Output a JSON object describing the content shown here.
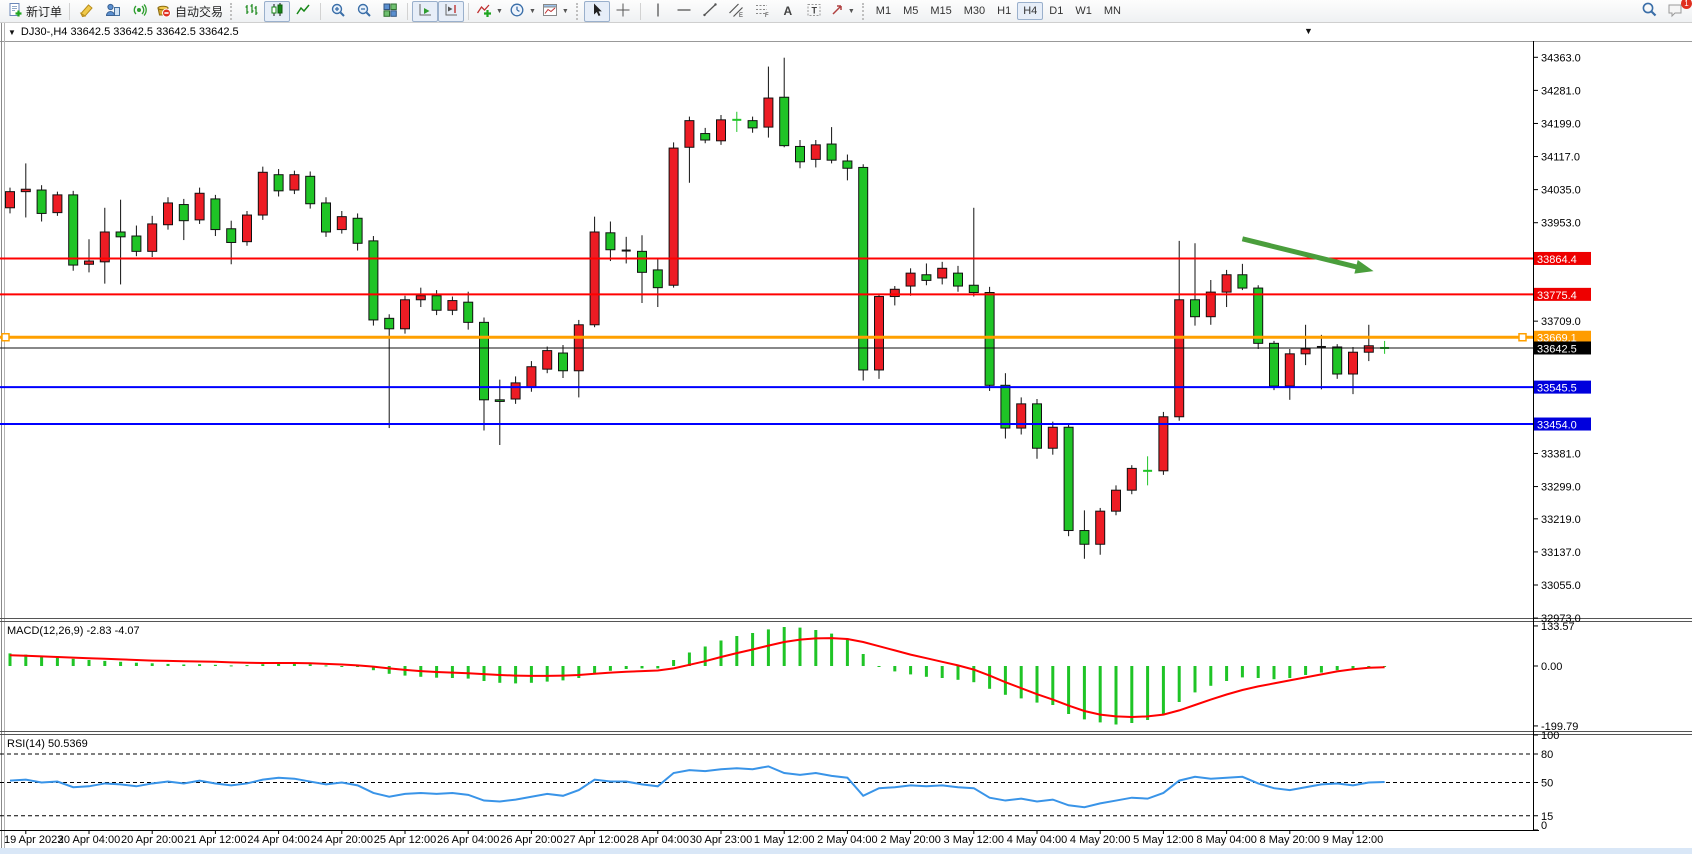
{
  "toolbar": {
    "new_order_label": "新订单",
    "autotrading_label": "自动交易",
    "timeframes": [
      "M1",
      "M5",
      "M15",
      "M30",
      "H1",
      "H4",
      "D1",
      "W1",
      "MN"
    ],
    "selected_timeframe": "H4",
    "notification_badge": "1"
  },
  "chart_title": {
    "text": "DJ30-,H4  33642.5 33642.5 33642.5 33642.5"
  },
  "chart_data": {
    "type": "candlestick",
    "symbol": "DJ30-",
    "timeframe": "H4",
    "color_convention": "red = bullish, green = bearish (Chinese convention)",
    "current_price": 33642.5,
    "price_axis_ticks": [
      34363.0,
      34281.0,
      34199.0,
      34117.0,
      34035.0,
      33953.0,
      33709.0,
      33381.0,
      33299.0,
      33219.0,
      33137.0,
      33055.0,
      32973.0
    ],
    "price_line_labels": [
      {
        "text": "33864.4",
        "price": 33864.4,
        "bg": "#ee0000"
      },
      {
        "text": "33775.4",
        "price": 33775.4,
        "bg": "#ee0000"
      },
      {
        "text": "33669.1",
        "price": 33669.1,
        "bg": "#ff9c00"
      },
      {
        "text": "33642.5",
        "price": 33642.5,
        "bg": "#000000"
      },
      {
        "text": "33545.5",
        "price": 33545.5,
        "bg": "#0000dd"
      },
      {
        "text": "33454.0",
        "price": 33454.0,
        "bg": "#0000dd"
      }
    ],
    "horizontal_lines": [
      {
        "price": 33864.4,
        "color": "#ff0000",
        "w": 2,
        "handles": false
      },
      {
        "price": 33775.4,
        "color": "#ff0000",
        "w": 2,
        "handles": false
      },
      {
        "price": 33669.1,
        "color": "#ffa000",
        "w": 3,
        "handles": true
      },
      {
        "price": 33642.5,
        "color": "#111111",
        "w": 1,
        "handles": false
      },
      {
        "price": 33545.5,
        "color": "#0000ff",
        "w": 2,
        "handles": false
      },
      {
        "price": 33454.0,
        "color": "#0000ff",
        "w": 2,
        "handles": false
      }
    ],
    "time_labels": [
      "19 Apr 2023",
      "20 Apr 04:00",
      "20 Apr 20:00",
      "21 Apr 12:00",
      "24 Apr 04:00",
      "24 Apr 20:00",
      "25 Apr 12:00",
      "26 Apr 04:00",
      "26 Apr 20:00",
      "27 Apr 12:00",
      "28 Apr 04:00",
      "30 Apr 23:00",
      "1 May 12:00",
      "2 May 04:00",
      "2 May 20:00",
      "3 May 12:00",
      "4 May 04:00",
      "4 May 20:00",
      "5 May 12:00",
      "8 May 04:00",
      "8 May 20:00",
      "9 May 12:00"
    ],
    "candle_colors": {
      "up": "#ed1c24",
      "down": "#1fc426",
      "wick": "#111111"
    },
    "candles": [
      [
        33990,
        34040,
        33976,
        34030
      ],
      [
        34030,
        34100,
        33966,
        34036
      ],
      [
        34034,
        34046,
        33956,
        33976
      ],
      [
        33978,
        34030,
        33970,
        34022
      ],
      [
        34022,
        34032,
        33834,
        33848
      ],
      [
        33850,
        33912,
        33830,
        33858
      ],
      [
        33856,
        33990,
        33802,
        33930
      ],
      [
        33930,
        34010,
        33800,
        33918
      ],
      [
        33920,
        33946,
        33870,
        33882
      ],
      [
        33882,
        33970,
        33868,
        33950
      ],
      [
        33948,
        34016,
        33936,
        34002
      ],
      [
        33998,
        34012,
        33910,
        33958
      ],
      [
        33960,
        34040,
        33950,
        34026
      ],
      [
        34012,
        34022,
        33920,
        33936
      ],
      [
        33938,
        33958,
        33850,
        33904
      ],
      [
        33906,
        33982,
        33896,
        33972
      ],
      [
        33972,
        34092,
        33960,
        34078
      ],
      [
        34072,
        34086,
        34018,
        34032
      ],
      [
        34034,
        34082,
        34024,
        34072
      ],
      [
        34068,
        34080,
        33988,
        34000
      ],
      [
        34002,
        34016,
        33918,
        33930
      ],
      [
        33936,
        33982,
        33926,
        33968
      ],
      [
        33964,
        33976,
        33884,
        33902
      ],
      [
        33908,
        33920,
        33698,
        33712
      ],
      [
        33716,
        33726,
        33444,
        33690
      ],
      [
        33690,
        33772,
        33678,
        33762
      ],
      [
        33762,
        33792,
        33744,
        33772
      ],
      [
        33772,
        33786,
        33724,
        33736
      ],
      [
        33736,
        33770,
        33724,
        33760
      ],
      [
        33756,
        33782,
        33688,
        33706
      ],
      [
        33706,
        33718,
        33438,
        33514
      ],
      [
        33514,
        33564,
        33402,
        33510
      ],
      [
        33516,
        33572,
        33504,
        33556
      ],
      [
        33546,
        33610,
        33534,
        33596
      ],
      [
        33590,
        33646,
        33580,
        33636
      ],
      [
        33630,
        33650,
        33568,
        33586
      ],
      [
        33586,
        33712,
        33520,
        33700
      ],
      [
        33700,
        33968,
        33694,
        33930
      ],
      [
        33928,
        33956,
        33858,
        33886
      ],
      [
        33884,
        33918,
        33852,
        33884
      ],
      [
        33882,
        33922,
        33754,
        33830
      ],
      [
        33836,
        33862,
        33744,
        33792
      ],
      [
        33798,
        34152,
        33792,
        34138
      ],
      [
        34140,
        34216,
        34052,
        34206
      ],
      [
        34174,
        34188,
        34150,
        34158
      ],
      [
        34156,
        34220,
        34146,
        34208
      ],
      [
        34208,
        34228,
        34178,
        34208
      ],
      [
        34206,
        34216,
        34176,
        34188
      ],
      [
        34190,
        34340,
        34164,
        34262
      ],
      [
        34264,
        34362,
        34140,
        34144
      ],
      [
        34142,
        34158,
        34088,
        34104
      ],
      [
        34110,
        34158,
        34090,
        34146
      ],
      [
        34148,
        34190,
        34100,
        34108
      ],
      [
        34106,
        34122,
        34058,
        34088
      ],
      [
        34090,
        34098,
        33562,
        33588
      ],
      [
        33588,
        33776,
        33566,
        33770
      ],
      [
        33770,
        33796,
        33748,
        33788
      ],
      [
        33796,
        33840,
        33772,
        33828
      ],
      [
        33824,
        33852,
        33798,
        33810
      ],
      [
        33816,
        33856,
        33800,
        33840
      ],
      [
        33828,
        33846,
        33782,
        33796
      ],
      [
        33798,
        33990,
        33770,
        33780
      ],
      [
        33780,
        33794,
        33536,
        33550
      ],
      [
        33550,
        33580,
        33418,
        33444
      ],
      [
        33444,
        33520,
        33428,
        33504
      ],
      [
        33504,
        33516,
        33368,
        33394
      ],
      [
        33394,
        33460,
        33378,
        33446
      ],
      [
        33446,
        33456,
        33176,
        33190
      ],
      [
        33190,
        33240,
        33120,
        33156
      ],
      [
        33156,
        33246,
        33130,
        33238
      ],
      [
        33238,
        33302,
        33228,
        33290
      ],
      [
        33290,
        33352,
        33280,
        33344
      ],
      [
        33338,
        33374,
        33302,
        33338
      ],
      [
        33338,
        33484,
        33328,
        33472
      ],
      [
        33472,
        33908,
        33462,
        33762
      ],
      [
        33762,
        33902,
        33698,
        33720
      ],
      [
        33720,
        33811,
        33700,
        33781
      ],
      [
        33781,
        33836,
        33744,
        33824
      ],
      [
        33824,
        33851,
        33786,
        33791
      ],
      [
        33791,
        33798,
        33640,
        33654
      ],
      [
        33654,
        33660,
        33538,
        33548
      ],
      [
        33548,
        33640,
        33514,
        33628
      ],
      [
        33628,
        33700,
        33600,
        33640
      ],
      [
        33645,
        33675,
        33540,
        33645
      ],
      [
        33645,
        33652,
        33566,
        33578
      ],
      [
        33578,
        33645,
        33528,
        33632
      ],
      [
        33632,
        33700,
        33610,
        33648
      ],
      [
        33642.5,
        33660,
        33628,
        33642.5
      ]
    ],
    "special_dojis": {
      "39": "#111111",
      "46": "#1fc426",
      "72": "#1fc426",
      "83": "#111111",
      "87": "#1fc426"
    },
    "arrow_annotation": {
      "from_bar": 78,
      "from_price": 33913,
      "to_bar": 86.3,
      "to_price": 33833,
      "color": "#4a9e3c"
    },
    "macd": {
      "label": "MACD(12,26,9)",
      "value_text": "-2.83 -4.07",
      "scale_max": 133.57,
      "scale_zero": "0.00",
      "scale_min": -199.79,
      "histogram_color": "#1fc426",
      "signal_color": "#ff0000",
      "histogram": [
        42,
        38,
        34,
        30,
        24,
        20,
        17,
        14,
        11,
        9,
        7,
        5,
        6,
        4,
        2,
        3,
        6,
        7,
        8,
        6,
        2,
        0,
        -3,
        -14,
        -26,
        -32,
        -36,
        -39,
        -40,
        -42,
        -50,
        -56,
        -58,
        -56,
        -52,
        -48,
        -40,
        -26,
        -16,
        -10,
        -8,
        -8,
        20,
        45,
        65,
        85,
        100,
        110,
        122,
        130,
        128,
        120,
        108,
        92,
        40,
        0,
        -18,
        -28,
        -36,
        -40,
        -46,
        -54,
        -76,
        -96,
        -108,
        -122,
        -130,
        -160,
        -178,
        -188,
        -195,
        -190,
        -180,
        -162,
        -120,
        -88,
        -66,
        -50,
        -38,
        -40,
        -44,
        -40,
        -30,
        -22,
        -14,
        -10,
        -6,
        -2.83
      ],
      "signal": [
        36,
        34,
        32,
        30,
        28,
        26,
        24,
        22,
        20,
        18,
        17,
        16,
        15,
        14,
        12,
        11,
        10,
        10,
        10,
        9,
        7,
        5,
        2,
        -2,
        -8,
        -13,
        -17,
        -20,
        -22,
        -24,
        -27,
        -30,
        -32,
        -33,
        -33,
        -32,
        -30,
        -26,
        -22,
        -19,
        -17,
        -15,
        -8,
        4,
        16,
        30,
        43,
        55,
        68,
        80,
        88,
        92,
        93,
        90,
        80,
        66,
        52,
        38,
        26,
        14,
        2,
        -12,
        -32,
        -54,
        -74,
        -94,
        -112,
        -132,
        -150,
        -162,
        -168,
        -170,
        -168,
        -162,
        -148,
        -130,
        -112,
        -95,
        -80,
        -68,
        -58,
        -48,
        -38,
        -28,
        -18,
        -11,
        -6,
        -4.07
      ]
    },
    "rsi": {
      "label": "RSI(14)",
      "value_text": "50.5369",
      "scale_ticks": [
        100,
        80,
        50,
        15,
        0
      ],
      "dashed_levels": [
        80,
        50,
        15
      ],
      "line_color": "#3994e8",
      "values": [
        52,
        53,
        50,
        51,
        45,
        46,
        49,
        48,
        46,
        49,
        51,
        49,
        52,
        49,
        47,
        49,
        53,
        55,
        54,
        51,
        48,
        50,
        47,
        39,
        35,
        38,
        39,
        38,
        39,
        37,
        31,
        30,
        32,
        35,
        38,
        36,
        42,
        53,
        51,
        51,
        48,
        46,
        60,
        63,
        62,
        64,
        65,
        64,
        67,
        60,
        58,
        60,
        57,
        55,
        36,
        44,
        45,
        47,
        46,
        47,
        45,
        44,
        34,
        31,
        33,
        30,
        32,
        26,
        24,
        28,
        31,
        34,
        33,
        39,
        52,
        56,
        54,
        55,
        56,
        49,
        44,
        42,
        45,
        48,
        49,
        47,
        50,
        50.54
      ]
    }
  }
}
